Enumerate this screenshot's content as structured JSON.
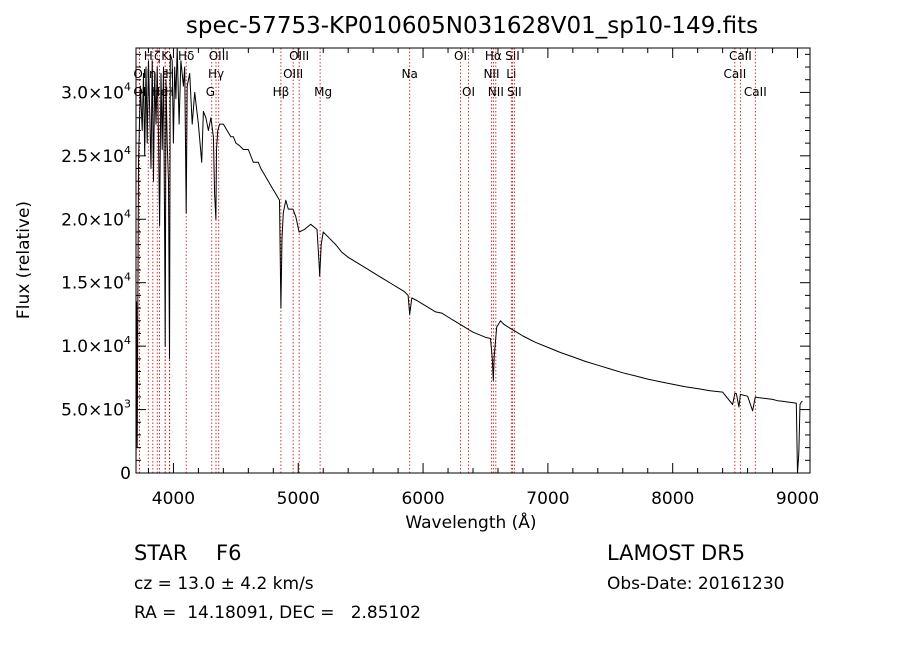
{
  "figure": {
    "title": "spec-57753-KP010605N031628V01_sp10-149.fits"
  },
  "info": {
    "class": "STAR",
    "subclass": "F6",
    "survey": "LAMOST DR5",
    "redshift": "cz = 13.0 ± 4.2 km/s",
    "obs_date": "Obs-Date: 20161230",
    "coords": "RA =  14.18091, DEC =   2.85102"
  },
  "colors": {
    "spectrum": "#000000",
    "line_marker": "#cc0000",
    "axes": "#000000"
  },
  "chart_data": {
    "type": "line",
    "title": "spec-57753-KP010605N031628V01_sp10-149.fits",
    "xlabel": "Wavelength (Å)",
    "ylabel": "Flux (relative)",
    "xlim": [
      3700,
      9100
    ],
    "ylim": [
      0,
      33500
    ],
    "x_ticks": [
      4000,
      5000,
      6000,
      7000,
      8000,
      9000
    ],
    "x_tick_labels": [
      "4000",
      "5000",
      "6000",
      "7000",
      "8000",
      "9000"
    ],
    "y_ticks": [
      0,
      5000,
      10000,
      15000,
      20000,
      25000,
      30000
    ],
    "y_tick_labels": [
      {
        "mant": "0",
        "exp": ""
      },
      {
        "mant": "5.0×10",
        "exp": "3"
      },
      {
        "mant": "1.0×10",
        "exp": "4"
      },
      {
        "mant": "1.5×10",
        "exp": "4"
      },
      {
        "mant": "2.0×10",
        "exp": "4"
      },
      {
        "mant": "2.5×10",
        "exp": "4"
      },
      {
        "mant": "3.0×10",
        "exp": "4"
      }
    ],
    "grid": false,
    "legend": "none",
    "series": [
      {
        "x": [
          3700,
          3705,
          3710,
          3720,
          3735,
          3750,
          3760,
          3770,
          3780,
          3790,
          3800,
          3810,
          3820,
          3830,
          3840,
          3850,
          3860,
          3870,
          3880,
          3889,
          3900,
          3910,
          3920,
          3930,
          3934,
          3940,
          3950,
          3960,
          3968,
          3975,
          3990,
          4000,
          4010,
          4020,
          4030,
          4045,
          4060,
          4080,
          4090,
          4102,
          4110,
          4130,
          4150,
          4170,
          4200,
          4226,
          4240,
          4260,
          4280,
          4300,
          4320,
          4330,
          4340,
          4345,
          4355,
          4370,
          4383,
          4400,
          4430,
          4460,
          4480,
          4500,
          4530,
          4560,
          4600,
          4640,
          4680,
          4700,
          4730,
          4760,
          4790,
          4820,
          4850,
          4861,
          4870,
          4880,
          4900,
          4920,
          4957,
          4980,
          5007,
          5050,
          5100,
          5150,
          5167,
          5172,
          5184,
          5200,
          5250,
          5300,
          5350,
          5400,
          5450,
          5500,
          5550,
          5600,
          5650,
          5700,
          5750,
          5800,
          5850,
          5880,
          5893,
          5910,
          5950,
          6000,
          6050,
          6100,
          6150,
          6200,
          6250,
          6300,
          6350,
          6400,
          6450,
          6500,
          6540,
          6555,
          6563,
          6570,
          6590,
          6620,
          6650,
          6700,
          6750,
          6800,
          6900,
          7000,
          7100,
          7200,
          7300,
          7400,
          7500,
          7600,
          7700,
          7800,
          7900,
          8000,
          8100,
          8200,
          8300,
          8400,
          8480,
          8498,
          8510,
          8530,
          8542,
          8560,
          8600,
          8640,
          8662,
          8680,
          8720,
          8760,
          8800,
          8840,
          8880,
          8920,
          8960,
          8990,
          9000,
          9010,
          9020,
          9030,
          9040
        ],
        "y": [
          0,
          13500,
          2000,
          24500,
          30500,
          27000,
          31500,
          25000,
          32000,
          26000,
          32500,
          28500,
          24000,
          32500,
          23000,
          31500,
          27500,
          32000,
          26500,
          19500,
          31500,
          25500,
          32000,
          18000,
          10000,
          31000,
          26000,
          23000,
          9000,
          33000,
          32500,
          26000,
          32000,
          29500,
          33500,
          27500,
          32500,
          30500,
          32000,
          20500,
          30500,
          31500,
          27500,
          30000,
          27500,
          24500,
          28500,
          28000,
          27000,
          28000,
          26500,
          22000,
          20000,
          25500,
          27000,
          27500,
          27500,
          27500,
          27000,
          26500,
          26500,
          26000,
          25800,
          25500,
          25500,
          24500,
          24500,
          24000,
          23500,
          23000,
          22500,
          22000,
          21500,
          13000,
          18500,
          20500,
          21500,
          20800,
          20800,
          20200,
          19000,
          19200,
          19600,
          19200,
          16500,
          15500,
          18000,
          19000,
          18500,
          18000,
          17400,
          17000,
          16700,
          16400,
          16100,
          15800,
          15500,
          15200,
          14900,
          14600,
          14300,
          14000,
          12500,
          13800,
          13600,
          13300,
          13000,
          12700,
          12600,
          12300,
          12000,
          11700,
          11400,
          11100,
          10900,
          10700,
          10600,
          9000,
          7300,
          9200,
          11500,
          12000,
          11700,
          11400,
          11100,
          10800,
          10300,
          9900,
          9500,
          9150,
          8800,
          8500,
          8200,
          7900,
          7650,
          7400,
          7200,
          7000,
          6800,
          6650,
          6480,
          6380,
          5400,
          6300,
          6250,
          5200,
          6200,
          6150,
          6050,
          4900,
          6000,
          5950,
          5900,
          5850,
          5800,
          5700,
          5650,
          5600,
          5550,
          5500,
          0,
          1500,
          5400,
          5600,
          5650
        ]
      }
    ],
    "line_markers": [
      {
        "wave": 3727,
        "label": "OII",
        "row": 1,
        "anchor": "start"
      },
      {
        "wave": 3727,
        "label": "OII",
        "row": 2,
        "anchor": "start"
      },
      {
        "wave": 3798,
        "label": "H",
        "row": 0,
        "anchor": "middle"
      },
      {
        "wave": 3835,
        "label": "η",
        "row": 1,
        "anchor": "middle"
      },
      {
        "wave": 3870,
        "label": "ζ",
        "row": 0,
        "anchor": "middle"
      },
      {
        "wave": 3889,
        "label": "He",
        "row": 2,
        "anchor": "middle"
      },
      {
        "wave": 3934,
        "label": "K",
        "row": 0,
        "anchor": "middle"
      },
      {
        "wave": 3934,
        "label": "ε",
        "row": 1,
        "anchor": "middle"
      },
      {
        "wave": 3968,
        "label": "H",
        "row": 2,
        "anchor": "middle"
      },
      {
        "wave": 3970,
        "label": "H",
        "row": 1,
        "anchor": "middle"
      },
      {
        "wave": 4102,
        "label": "Hδ",
        "row": 0,
        "anchor": "middle"
      },
      {
        "wave": 4307,
        "label": "G",
        "row": 2,
        "anchor": "start"
      },
      {
        "wave": 4341,
        "label": "Hγ",
        "row": 1,
        "anchor": "middle"
      },
      {
        "wave": 4363,
        "label": "OIII",
        "row": 0,
        "anchor": "middle"
      },
      {
        "wave": 4861,
        "label": "Hβ",
        "row": 2,
        "anchor": "middle"
      },
      {
        "wave": 4959,
        "label": "OIII",
        "row": 1,
        "anchor": "middle"
      },
      {
        "wave": 5007,
        "label": "OIII",
        "row": 0,
        "anchor": "middle"
      },
      {
        "wave": 5175,
        "label": "Mg",
        "row": 2,
        "anchor": "start"
      },
      {
        "wave": 5893,
        "label": "Na",
        "row": 1,
        "anchor": "middle"
      },
      {
        "wave": 6300,
        "label": "OI",
        "row": 0,
        "anchor": "middle"
      },
      {
        "wave": 6364,
        "label": "OI",
        "row": 2,
        "anchor": "middle"
      },
      {
        "wave": 6548,
        "label": "NII",
        "row": 1,
        "anchor": "middle"
      },
      {
        "wave": 6563,
        "label": "Hα",
        "row": 0,
        "anchor": "middle"
      },
      {
        "wave": 6583,
        "label": "NII",
        "row": 2,
        "anchor": "middle"
      },
      {
        "wave": 6707,
        "label": "Li",
        "row": 1,
        "anchor": "middle"
      },
      {
        "wave": 6716,
        "label": "SII",
        "row": 0,
        "anchor": "middle"
      },
      {
        "wave": 6731,
        "label": "SII",
        "row": 2,
        "anchor": "middle"
      },
      {
        "wave": 8498,
        "label": "CaII",
        "row": 1,
        "anchor": "middle"
      },
      {
        "wave": 8542,
        "label": "CaII",
        "row": 0,
        "anchor": "middle"
      },
      {
        "wave": 8662,
        "label": "CaII",
        "row": 2,
        "anchor": "middle"
      }
    ]
  }
}
